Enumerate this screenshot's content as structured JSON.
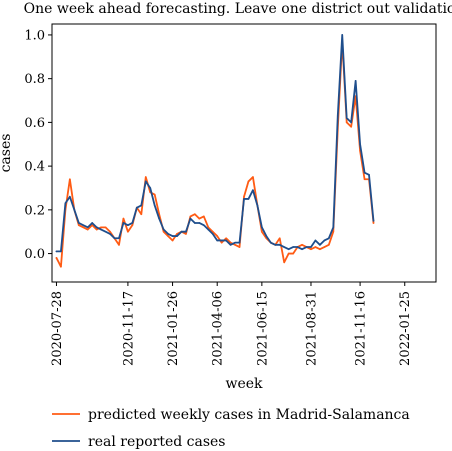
{
  "chart_data": {
    "type": "line",
    "title": "One week ahead forecasting. Leave one district out validation",
    "xlabel": "week",
    "ylabel": "cases",
    "x_tick_labels": [
      "2020-07-28",
      "2020-11-17",
      "2021-01-26",
      "2021-04-06",
      "2021-06-15",
      "2021-08-31",
      "2021-11-16",
      "2022-01-25"
    ],
    "y_ticks": [
      0.0,
      0.2,
      0.4,
      0.6,
      0.8,
      1.0
    ],
    "y_tick_labels": [
      "0.0",
      "0.2",
      "0.4",
      "0.6",
      "0.8",
      "1.0"
    ],
    "ylim": [
      -0.13,
      1.05
    ],
    "xlim": [
      "2020-07-21",
      "2022-03-15"
    ],
    "grid": false,
    "legend_position": "bottom",
    "colors": {
      "predicted": "#ff5b14",
      "real": "#1f4e8c"
    },
    "series": [
      {
        "name": "predicted weekly cases in Madrid-Salamanca",
        "points": [
          [
            "2020-07-28",
            -0.02
          ],
          [
            "2020-08-04",
            -0.06
          ],
          [
            "2020-08-11",
            0.2
          ],
          [
            "2020-08-18",
            0.34
          ],
          [
            "2020-08-25",
            0.2
          ],
          [
            "2020-09-01",
            0.13
          ],
          [
            "2020-09-08",
            0.12
          ],
          [
            "2020-09-15",
            0.11
          ],
          [
            "2020-09-22",
            0.13
          ],
          [
            "2020-09-29",
            0.11
          ],
          [
            "2020-10-06",
            0.12
          ],
          [
            "2020-10-13",
            0.12
          ],
          [
            "2020-10-20",
            0.1
          ],
          [
            "2020-10-27",
            0.07
          ],
          [
            "2020-11-03",
            0.04
          ],
          [
            "2020-11-10",
            0.16
          ],
          [
            "2020-11-17",
            0.1
          ],
          [
            "2020-11-24",
            0.13
          ],
          [
            "2020-12-01",
            0.21
          ],
          [
            "2020-12-08",
            0.18
          ],
          [
            "2020-12-15",
            0.35
          ],
          [
            "2020-12-22",
            0.28
          ],
          [
            "2020-12-29",
            0.27
          ],
          [
            "2021-01-05",
            0.18
          ],
          [
            "2021-01-12",
            0.1
          ],
          [
            "2021-01-19",
            0.08
          ],
          [
            "2021-01-26",
            0.06
          ],
          [
            "2021-02-02",
            0.09
          ],
          [
            "2021-02-09",
            0.1
          ],
          [
            "2021-02-16",
            0.09
          ],
          [
            "2021-02-23",
            0.17
          ],
          [
            "2021-03-02",
            0.18
          ],
          [
            "2021-03-09",
            0.16
          ],
          [
            "2021-03-16",
            0.17
          ],
          [
            "2021-03-23",
            0.12
          ],
          [
            "2021-03-30",
            0.1
          ],
          [
            "2021-04-06",
            0.08
          ],
          [
            "2021-04-13",
            0.05
          ],
          [
            "2021-04-20",
            0.07
          ],
          [
            "2021-04-27",
            0.05
          ],
          [
            "2021-05-04",
            0.04
          ],
          [
            "2021-05-11",
            0.03
          ],
          [
            "2021-05-18",
            0.26
          ],
          [
            "2021-05-25",
            0.33
          ],
          [
            "2021-06-01",
            0.35
          ],
          [
            "2021-06-08",
            0.22
          ],
          [
            "2021-06-15",
            0.1
          ],
          [
            "2021-06-22",
            0.07
          ],
          [
            "2021-06-29",
            0.05
          ],
          [
            "2021-07-06",
            0.04
          ],
          [
            "2021-07-13",
            0.07
          ],
          [
            "2021-07-20",
            -0.04
          ],
          [
            "2021-07-27",
            0.0
          ],
          [
            "2021-08-03",
            0.0
          ],
          [
            "2021-08-10",
            0.03
          ],
          [
            "2021-08-17",
            0.04
          ],
          [
            "2021-08-24",
            0.03
          ],
          [
            "2021-08-31",
            0.02
          ],
          [
            "2021-09-07",
            0.03
          ],
          [
            "2021-09-14",
            0.02
          ],
          [
            "2021-09-21",
            0.03
          ],
          [
            "2021-09-28",
            0.04
          ],
          [
            "2021-10-05",
            0.1
          ],
          [
            "2021-10-12",
            0.57
          ],
          [
            "2021-10-19",
            0.97
          ],
          [
            "2021-10-26",
            0.6
          ],
          [
            "2021-11-02",
            0.58
          ],
          [
            "2021-11-09",
            0.72
          ],
          [
            "2021-11-16",
            0.47
          ],
          [
            "2021-11-23",
            0.34
          ],
          [
            "2021-11-30",
            0.34
          ],
          [
            "2021-12-07",
            0.14
          ]
        ]
      },
      {
        "name": "real reported cases",
        "points": [
          [
            "2020-07-28",
            0.01
          ],
          [
            "2020-08-04",
            0.01
          ],
          [
            "2020-08-11",
            0.23
          ],
          [
            "2020-08-18",
            0.26
          ],
          [
            "2020-08-25",
            0.2
          ],
          [
            "2020-09-01",
            0.14
          ],
          [
            "2020-09-08",
            0.13
          ],
          [
            "2020-09-15",
            0.12
          ],
          [
            "2020-09-22",
            0.14
          ],
          [
            "2020-09-29",
            0.12
          ],
          [
            "2020-10-06",
            0.11
          ],
          [
            "2020-10-13",
            0.1
          ],
          [
            "2020-10-20",
            0.09
          ],
          [
            "2020-10-27",
            0.07
          ],
          [
            "2020-11-03",
            0.07
          ],
          [
            "2020-11-10",
            0.14
          ],
          [
            "2020-11-17",
            0.13
          ],
          [
            "2020-11-24",
            0.14
          ],
          [
            "2020-12-01",
            0.21
          ],
          [
            "2020-12-08",
            0.22
          ],
          [
            "2020-12-15",
            0.33
          ],
          [
            "2020-12-22",
            0.3
          ],
          [
            "2020-12-29",
            0.22
          ],
          [
            "2021-01-05",
            0.16
          ],
          [
            "2021-01-12",
            0.11
          ],
          [
            "2021-01-19",
            0.09
          ],
          [
            "2021-01-26",
            0.08
          ],
          [
            "2021-02-02",
            0.08
          ],
          [
            "2021-02-09",
            0.1
          ],
          [
            "2021-02-16",
            0.1
          ],
          [
            "2021-02-23",
            0.16
          ],
          [
            "2021-03-02",
            0.14
          ],
          [
            "2021-03-09",
            0.14
          ],
          [
            "2021-03-16",
            0.13
          ],
          [
            "2021-03-23",
            0.11
          ],
          [
            "2021-03-30",
            0.09
          ],
          [
            "2021-04-06",
            0.06
          ],
          [
            "2021-04-13",
            0.06
          ],
          [
            "2021-04-20",
            0.06
          ],
          [
            "2021-04-27",
            0.04
          ],
          [
            "2021-05-04",
            0.05
          ],
          [
            "2021-05-11",
            0.05
          ],
          [
            "2021-05-18",
            0.25
          ],
          [
            "2021-05-25",
            0.25
          ],
          [
            "2021-06-01",
            0.29
          ],
          [
            "2021-06-08",
            0.22
          ],
          [
            "2021-06-15",
            0.12
          ],
          [
            "2021-06-22",
            0.08
          ],
          [
            "2021-06-29",
            0.05
          ],
          [
            "2021-07-06",
            0.04
          ],
          [
            "2021-07-13",
            0.04
          ],
          [
            "2021-07-20",
            0.03
          ],
          [
            "2021-07-27",
            0.02
          ],
          [
            "2021-08-03",
            0.03
          ],
          [
            "2021-08-10",
            0.03
          ],
          [
            "2021-08-17",
            0.02
          ],
          [
            "2021-08-24",
            0.03
          ],
          [
            "2021-08-31",
            0.03
          ],
          [
            "2021-09-07",
            0.06
          ],
          [
            "2021-09-14",
            0.04
          ],
          [
            "2021-09-21",
            0.06
          ],
          [
            "2021-09-28",
            0.07
          ],
          [
            "2021-10-05",
            0.12
          ],
          [
            "2021-10-12",
            0.63
          ],
          [
            "2021-10-19",
            1.0
          ],
          [
            "2021-10-26",
            0.62
          ],
          [
            "2021-11-02",
            0.6
          ],
          [
            "2021-11-09",
            0.79
          ],
          [
            "2021-11-16",
            0.5
          ],
          [
            "2021-11-23",
            0.37
          ],
          [
            "2021-11-30",
            0.36
          ],
          [
            "2021-12-07",
            0.15
          ]
        ]
      }
    ]
  }
}
